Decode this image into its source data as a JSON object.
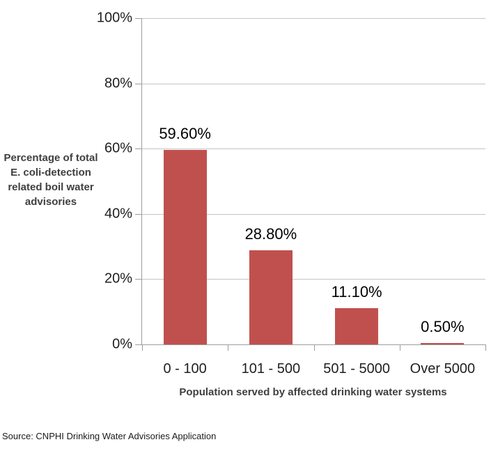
{
  "chart_data": {
    "type": "bar",
    "categories": [
      "0 - 100",
      "101 - 500",
      "501 - 5000",
      "Over 5000"
    ],
    "values": [
      59.6,
      28.8,
      11.1,
      0.5
    ],
    "data_labels": [
      "59.60%",
      "28.80%",
      "11.10%",
      "0.50%"
    ],
    "xlabel": "Population served by affected drinking water systems",
    "ylabel": "Percentage of total E. coli-detection related boil water advisories",
    "ylabel_lines": [
      "Percentage of total",
      "E. coli-detection",
      "related boil water",
      "advisories"
    ],
    "y_ticks": [
      "0%",
      "20%",
      "40%",
      "60%",
      "80%",
      "100%"
    ],
    "y_tick_values": [
      0,
      20,
      40,
      60,
      80,
      100
    ],
    "ylim": [
      0,
      100
    ],
    "grid": true,
    "legend": false,
    "bar_color": "#C0504D"
  },
  "footer": {
    "source": "Source: CNPHI Drinking Water Advisories Application"
  }
}
